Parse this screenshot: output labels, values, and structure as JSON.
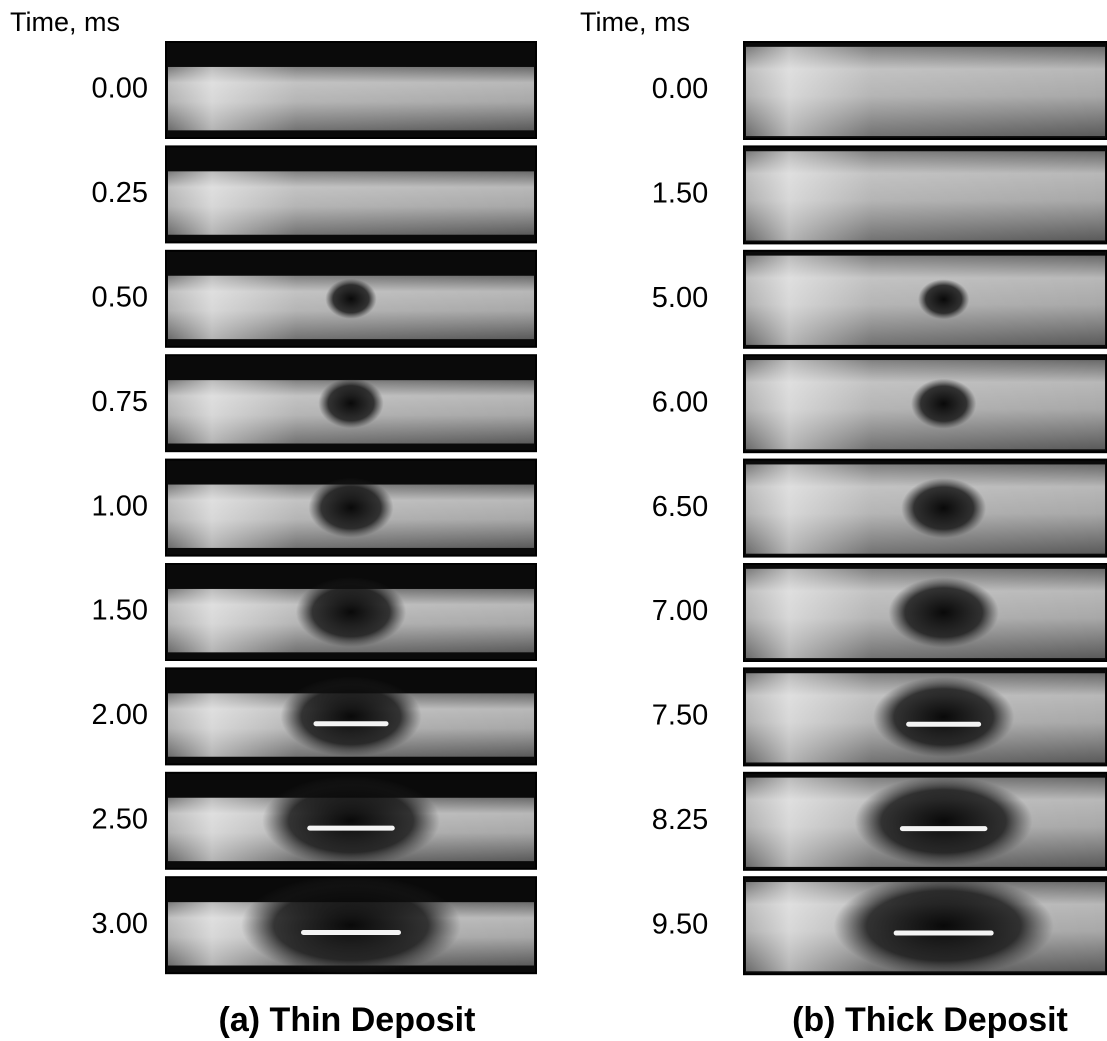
{
  "panels": [
    {
      "header": "Time, ms",
      "frames": [
        "0.00",
        "0.25",
        "0.50",
        "0.75",
        "1.00",
        "1.50",
        "2.00",
        "2.50",
        "3.00"
      ],
      "caption": "(a) Thin Deposit"
    },
    {
      "header": "Time, ms",
      "frames": [
        "0.00",
        "1.50",
        "5.00",
        "6.00",
        "6.50",
        "7.00",
        "7.50",
        "8.25",
        "9.50"
      ],
      "caption": "(b) Thick Deposit"
    }
  ]
}
